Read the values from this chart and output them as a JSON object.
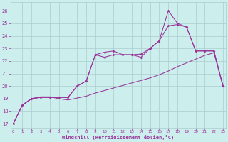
{
  "background_color": "#cceeed",
  "grid_color": "#aacccc",
  "line_color": "#993399",
  "xlabel": "Windchill (Refroidissement éolien,°C)",
  "ylim": [
    16.7,
    26.7
  ],
  "xlim": [
    -0.3,
    23.3
  ],
  "yticks": [
    17,
    18,
    19,
    20,
    21,
    22,
    23,
    24,
    25,
    26
  ],
  "xticks": [
    0,
    1,
    2,
    3,
    4,
    5,
    6,
    7,
    8,
    9,
    10,
    11,
    12,
    13,
    14,
    15,
    16,
    17,
    18,
    19,
    20,
    21,
    22,
    23
  ],
  "line1_x": [
    0,
    1,
    2,
    3,
    4,
    5,
    6,
    7,
    8,
    9,
    10,
    11,
    12,
    13,
    14,
    15,
    16,
    17,
    18,
    19,
    20,
    21,
    22,
    23
  ],
  "line1_y": [
    17.0,
    18.5,
    19.0,
    19.15,
    19.15,
    19.0,
    18.9,
    19.05,
    19.2,
    19.45,
    19.65,
    19.85,
    20.05,
    20.25,
    20.45,
    20.65,
    20.9,
    21.2,
    21.55,
    21.85,
    22.15,
    22.45,
    22.65,
    20.0
  ],
  "line2_x": [
    0,
    1,
    2,
    3,
    4,
    5,
    6,
    7,
    8,
    9,
    10,
    11,
    12,
    13,
    14,
    15,
    16,
    17,
    18,
    19,
    20,
    21,
    22,
    23
  ],
  "line2_y": [
    17.0,
    18.5,
    19.0,
    19.1,
    19.1,
    19.1,
    19.1,
    20.0,
    20.4,
    22.5,
    22.7,
    22.8,
    22.5,
    22.5,
    22.55,
    23.0,
    23.6,
    26.0,
    25.0,
    24.7,
    22.8,
    22.8,
    22.8,
    20.0
  ],
  "line3_x": [
    0,
    1,
    2,
    3,
    4,
    5,
    6,
    7,
    8,
    9,
    10,
    11,
    12,
    13,
    14,
    15,
    16,
    17,
    18,
    19,
    20,
    21,
    22,
    23
  ],
  "line3_y": [
    17.0,
    18.5,
    19.0,
    19.1,
    19.1,
    19.1,
    19.1,
    20.0,
    20.4,
    22.5,
    22.3,
    22.5,
    22.5,
    22.5,
    22.3,
    23.0,
    23.6,
    24.8,
    24.9,
    24.7,
    22.8,
    22.8,
    22.8,
    20.0
  ]
}
